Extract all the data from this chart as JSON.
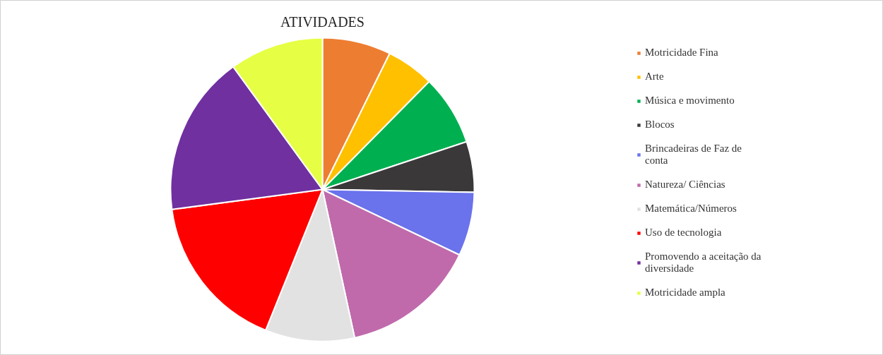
{
  "chart_data": {
    "type": "pie",
    "title": "ATIVIDADES",
    "categories": [
      "Motricidade Fina",
      "Arte",
      "Música e movimento",
      "Blocos",
      "Brincadeiras de Faz de conta",
      "Natureza/ Ciências",
      "Matemática/Números",
      "Uso de tecnologia",
      "Promovendo a aceitação da diversidade",
      "Motricidade ampla"
    ],
    "values": [
      7.3,
      5.1,
      7.5,
      5.4,
      6.8,
      14.5,
      9.5,
      16.8,
      17.1,
      10.0
    ],
    "colors": [
      "#ed7d31",
      "#ffc000",
      "#00b050",
      "#3a3838",
      "#6a72ec",
      "#c06aac",
      "#e2e2e2",
      "#ff0000",
      "#7030a0",
      "#e6ff44"
    ],
    "legend": "right"
  }
}
